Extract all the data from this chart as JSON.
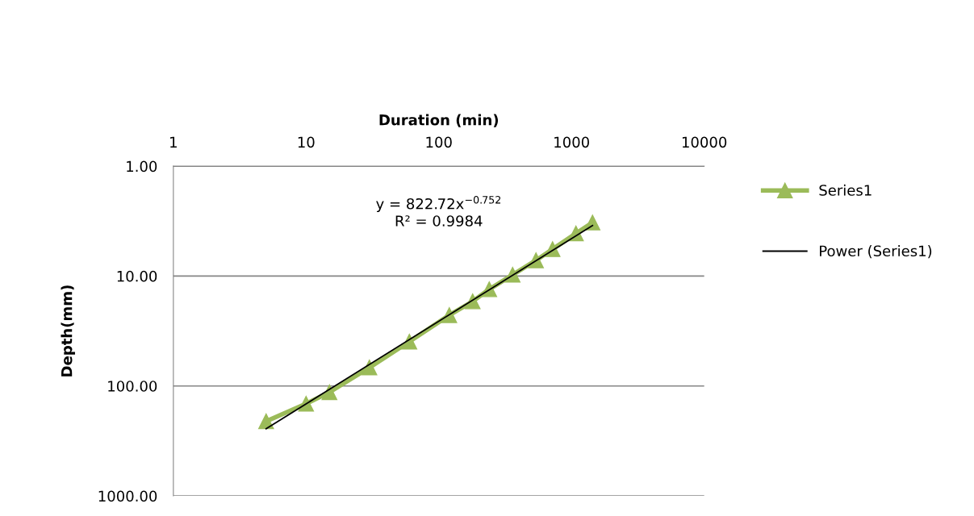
{
  "chart_data": {
    "type": "line",
    "xlabel": "Duration (min)",
    "ylabel": "Depth(mm)",
    "log": "xy",
    "grid": "y",
    "legend": "right",
    "marker": "triangle",
    "line_style": "solid",
    "xlim": [
      1,
      10000
    ],
    "xticks": [
      1,
      10,
      100,
      1000,
      10000
    ],
    "ylim": [
      1000,
      1
    ],
    "yticks": [
      {
        "value": 1,
        "label": "1.00"
      },
      {
        "value": 10,
        "label": "10.00"
      },
      {
        "value": 100,
        "label": "100.00"
      },
      {
        "value": 1000,
        "label": "1000.00"
      }
    ],
    "series": [
      {
        "name": "Series1",
        "color": "#9bbb59",
        "x": [
          5,
          10,
          15,
          30,
          60,
          120,
          180,
          240,
          360,
          540,
          720,
          1080,
          1440
        ],
        "values": [
          210,
          145,
          114,
          68,
          39.5,
          22.7,
          17.0,
          13.2,
          9.75,
          7.2,
          5.7,
          4.1,
          3.26
        ]
      },
      {
        "name": "Power (Series1)",
        "color": "#000000",
        "marker": "none",
        "x": [
          5,
          1440
        ],
        "values": [
          245.2,
          3.47
        ]
      }
    ],
    "annotations": [
      "y = 822.72x$^{−0.752}$",
      "R² = 0.9984"
    ]
  }
}
